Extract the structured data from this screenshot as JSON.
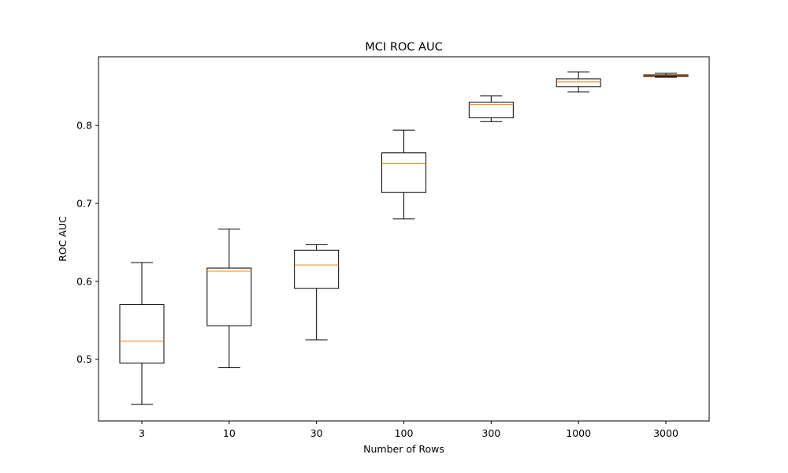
{
  "chart_data": {
    "type": "box",
    "title": "MCI ROC AUC",
    "xlabel": "Number of Rows",
    "ylabel": "ROC AUC",
    "categories": [
      "3",
      "10",
      "30",
      "100",
      "300",
      "1000",
      "3000"
    ],
    "boxes": [
      {
        "category": "3",
        "whisker_low": 0.442,
        "q1": 0.495,
        "median": 0.523,
        "q3": 0.57,
        "whisker_high": 0.624
      },
      {
        "category": "10",
        "whisker_low": 0.489,
        "q1": 0.543,
        "median": 0.613,
        "q3": 0.617,
        "whisker_high": 0.667
      },
      {
        "category": "30",
        "whisker_low": 0.525,
        "q1": 0.591,
        "median": 0.621,
        "q3": 0.64,
        "whisker_high": 0.647
      },
      {
        "category": "100",
        "whisker_low": 0.68,
        "q1": 0.714,
        "median": 0.751,
        "q3": 0.765,
        "whisker_high": 0.794
      },
      {
        "category": "300",
        "whisker_low": 0.805,
        "q1": 0.81,
        "median": 0.827,
        "q3": 0.83,
        "whisker_high": 0.838
      },
      {
        "category": "1000",
        "whisker_low": 0.843,
        "q1": 0.85,
        "median": 0.856,
        "q3": 0.86,
        "whisker_high": 0.869
      },
      {
        "category": "3000",
        "whisker_low": 0.862,
        "q1": 0.863,
        "median": 0.864,
        "q3": 0.865,
        "whisker_high": 0.867
      }
    ],
    "yticks": [
      0.5,
      0.6,
      0.7,
      0.8
    ],
    "ylim": [
      0.4207,
      0.8883
    ],
    "grid": false,
    "colors": {
      "box": "#000000",
      "median": "#ff7f0e",
      "background": "#ffffff"
    }
  }
}
